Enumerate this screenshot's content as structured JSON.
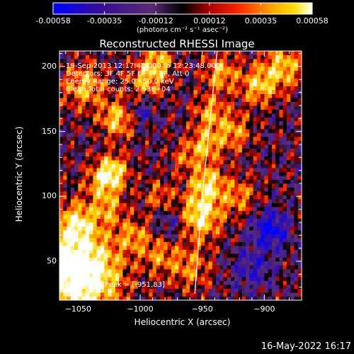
{
  "colorbar": {
    "ticks": [
      "-0.00058",
      "-0.00035",
      "-0.00012",
      "0.00012",
      "0.00035",
      "0.00058"
    ],
    "values": [
      -0.00058,
      -0.00035,
      -0.00012,
      0.00012,
      0.00035,
      0.00058
    ],
    "units": "(photons cm⁻² s⁻¹ asec⁻²)"
  },
  "chart_data": {
    "type": "heatmap",
    "title": "Reconstructed RHESSI Image",
    "xlabel": "Heliocentric X (arcsec)",
    "ylabel": "Heliocentric Y (arcsec)",
    "xlim": [
      -1065,
      -870
    ],
    "ylim": [
      20,
      212
    ],
    "xticks": [
      -1050,
      -1000,
      -950,
      -900
    ],
    "yticks": [
      50,
      100,
      150,
      200
    ],
    "color_range": [
      -0.00058,
      0.00058
    ],
    "info_lines": [
      "19-Sep-2013 12:17:48.000 to 12:23:48.000",
      "Detectors: 3F 4F 5F 6F 7F 8F, Att 0",
      "Energy Range: 25.0 - 50.0 keV",
      "Clean    Total counts: 2.53E+04"
    ],
    "peak_label": "Position of Peak = [-951,83]",
    "limb_line": [
      [
        -956,
        25
      ],
      [
        -950,
        100
      ],
      [
        -938,
        212
      ]
    ]
  },
  "footer": "16-May-2022 16:17"
}
